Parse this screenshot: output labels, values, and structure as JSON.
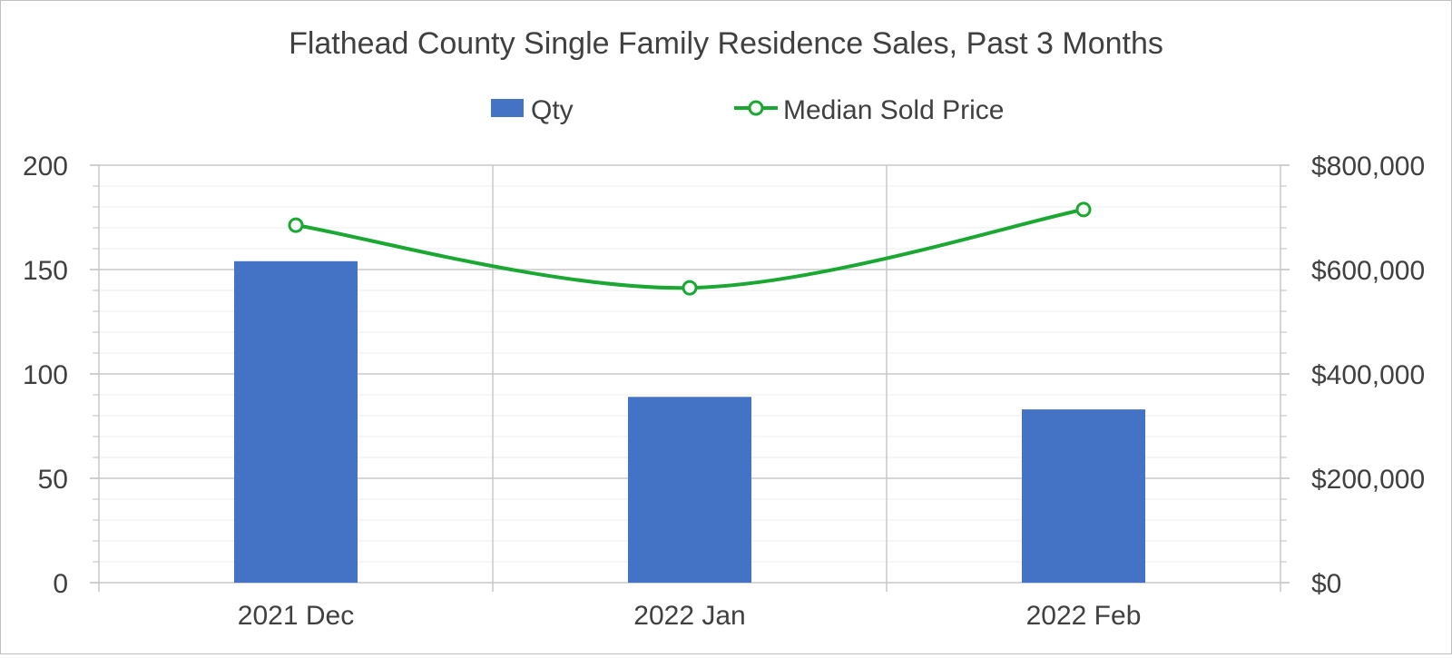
{
  "chart_data": {
    "type": "bar",
    "title": "Flathead County Single Family Residence Sales, Past 3 Months",
    "categories": [
      "2021 Dec",
      "2022 Jan",
      "2022 Feb"
    ],
    "xlabel": "",
    "ylabel": "",
    "y2label": "",
    "ylim": [
      0,
      200
    ],
    "y2lim": [
      0,
      800000
    ],
    "yticks": [
      0,
      50,
      100,
      150,
      200
    ],
    "y2ticks": [
      0,
      200000,
      400000,
      600000,
      800000
    ],
    "ytick_labels": [
      "0",
      "50",
      "100",
      "150",
      "200"
    ],
    "y2tick_labels": [
      "$0",
      "$200,000",
      "$400,000",
      "$600,000",
      "$800,000"
    ],
    "grid": true,
    "legend_position": "top-center",
    "series": [
      {
        "name": "Qty",
        "type": "bar",
        "axis": "left",
        "color": "#4472C4",
        "values": [
          154,
          89,
          83
        ]
      },
      {
        "name": "Median Sold Price",
        "type": "line",
        "axis": "right",
        "color": "#1AA832",
        "smooth": true,
        "marker": "hollow-circle",
        "values": [
          685000,
          565000,
          715000
        ]
      }
    ]
  }
}
